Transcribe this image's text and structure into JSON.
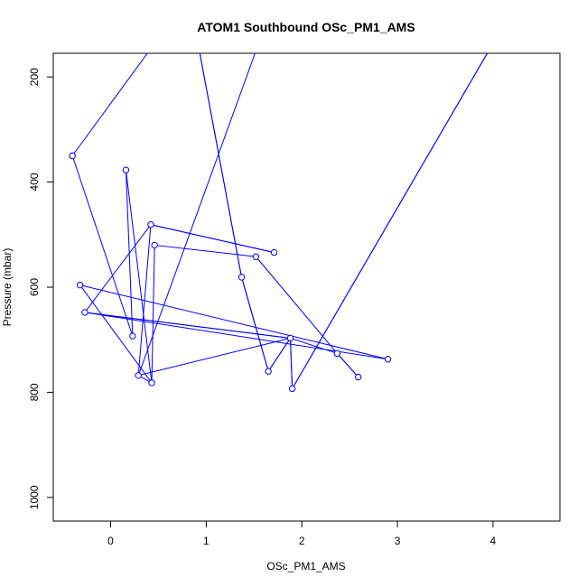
{
  "chart_data": {
    "type": "line",
    "title": "ATOM1 Southbound OSc_PM1_AMS",
    "xlabel": "OSc_PM1_AMS",
    "ylabel": "Pressure (mbar)",
    "xlim": [
      -0.6,
      4.7
    ],
    "ylim": [
      1045,
      155
    ],
    "y_reversed": true,
    "x_ticks": [
      0,
      1,
      2,
      3,
      4
    ],
    "y_ticks": [
      200,
      400,
      600,
      800,
      1000
    ],
    "x_tick_labels": [
      "0",
      "1",
      "2",
      "3",
      "4"
    ],
    "y_tick_labels": [
      "200",
      "400",
      "600",
      "800",
      "1000"
    ],
    "grid": false,
    "legend": "none",
    "series": [
      {
        "color": "#0000ff",
        "markers": "open-circle",
        "points": [
          {
            "x": 1.02,
            "y": -3
          },
          {
            "x": -0.4,
            "y": 350
          },
          {
            "x": 0.23,
            "y": 693
          },
          {
            "x": 0.16,
            "y": 377
          },
          {
            "x": 0.43,
            "y": 782
          },
          {
            "x": 0.46,
            "y": 520
          },
          {
            "x": 1.52,
            "y": 542
          },
          {
            "x": 2.37,
            "y": 726
          },
          {
            "x": 2.59,
            "y": 771
          },
          {
            "x": 2.37,
            "y": 726
          },
          {
            "x": 1.88,
            "y": 697
          },
          {
            "x": -0.27,
            "y": 648
          },
          {
            "x": 2.9,
            "y": 737
          },
          {
            "x": -0.32,
            "y": 596
          },
          {
            "x": 0.43,
            "y": 782
          },
          {
            "x": 0.29,
            "y": 768
          },
          {
            "x": 0.42,
            "y": 481
          },
          {
            "x": 1.71,
            "y": 534
          },
          {
            "x": 0.42,
            "y": 481
          },
          {
            "x": -0.27,
            "y": 648
          },
          {
            "x": 1.88,
            "y": 697
          },
          {
            "x": 1.65,
            "y": 760
          },
          {
            "x": 1.37,
            "y": 581
          },
          {
            "x": 0.8,
            "y": 25
          },
          {
            "x": 1.37,
            "y": 581
          },
          {
            "x": 1.65,
            "y": 760
          },
          {
            "x": 1.88,
            "y": 697
          },
          {
            "x": 1.9,
            "y": 793
          },
          {
            "x": 4.1,
            "y": 105
          },
          {
            "x": 4.1,
            "y": 105
          },
          {
            "x": 1.9,
            "y": 793
          },
          {
            "x": 1.88,
            "y": 697
          },
          {
            "x": 0.29,
            "y": 768
          },
          {
            "x": 1.72,
            "y": 50
          }
        ],
        "visible_markers": [
          {
            "x": -0.4,
            "y": 350
          },
          {
            "x": 0.16,
            "y": 377
          },
          {
            "x": 0.42,
            "y": 481
          },
          {
            "x": 0.46,
            "y": 520
          },
          {
            "x": 1.71,
            "y": 534
          },
          {
            "x": 1.52,
            "y": 542
          },
          {
            "x": 1.37,
            "y": 581
          },
          {
            "x": -0.32,
            "y": 596
          },
          {
            "x": -0.27,
            "y": 648
          },
          {
            "x": 0.23,
            "y": 693
          },
          {
            "x": 1.88,
            "y": 697
          },
          {
            "x": 2.37,
            "y": 726
          },
          {
            "x": 2.9,
            "y": 737
          },
          {
            "x": 1.65,
            "y": 760
          },
          {
            "x": 0.29,
            "y": 768
          },
          {
            "x": 2.59,
            "y": 771
          },
          {
            "x": 0.43,
            "y": 782
          },
          {
            "x": 1.9,
            "y": 793
          }
        ]
      }
    ]
  }
}
